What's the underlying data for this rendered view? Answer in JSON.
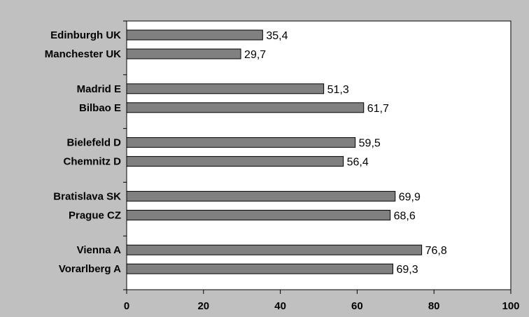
{
  "chart_data": {
    "type": "bar",
    "orientation": "horizontal",
    "groups": [
      [
        "Edinburgh UK",
        "Manchester UK"
      ],
      [
        "Madrid E",
        "Bilbao E"
      ],
      [
        "Bielefeld D",
        "Chemnitz D"
      ],
      [
        "Bratislava SK",
        "Prague CZ"
      ],
      [
        "Vienna A",
        "Vorarlberg A"
      ]
    ],
    "categories": [
      "Edinburgh UK",
      "Manchester UK",
      "Madrid E",
      "Bilbao E",
      "Bielefeld D",
      "Chemnitz D",
      "Bratislava SK",
      "Prague CZ",
      "Vienna A",
      "Vorarlberg A"
    ],
    "values": [
      35.4,
      29.7,
      51.3,
      61.7,
      59.5,
      56.4,
      69.9,
      68.6,
      76.8,
      69.3
    ],
    "value_labels": [
      "35,4",
      "29,7",
      "51,3",
      "61,7",
      "59,5",
      "56,4",
      "69,9",
      "68,6",
      "76,8",
      "69,3"
    ],
    "x_ticks": [
      "0",
      "20",
      "40",
      "60",
      "80",
      "100"
    ],
    "xlim": [
      0,
      100
    ],
    "title": "",
    "xlabel": "",
    "ylabel": "",
    "grid": false,
    "bar_color": "#808080",
    "plot_background": "#ffffff",
    "chart_background": "#c0c0c0"
  }
}
